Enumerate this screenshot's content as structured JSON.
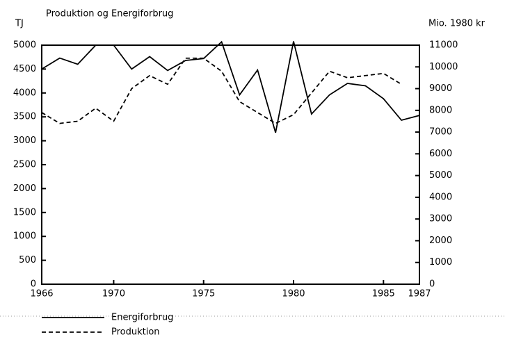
{
  "chart_data": {
    "type": "line",
    "title": "Produktion og Energiforbrug",
    "ylabel": "TJ",
    "y2label": "Mio. 1980 kr",
    "x": [
      1966,
      1967,
      1968,
      1969,
      1970,
      1971,
      1972,
      1973,
      1974,
      1975,
      1976,
      1977,
      1978,
      1979,
      1980,
      1981,
      1982,
      1983,
      1984,
      1985,
      1986,
      1987
    ],
    "xlim": [
      1966,
      1987
    ],
    "xticks": [
      1966,
      1970,
      1975,
      1980,
      1985,
      1987
    ],
    "ylim": [
      0,
      5000
    ],
    "yticks": [
      0,
      500,
      1000,
      1500,
      2000,
      2500,
      3000,
      3500,
      4000,
      4500,
      5000
    ],
    "y2lim": [
      0,
      11000
    ],
    "y2ticks": [
      0,
      1000,
      2000,
      3000,
      4000,
      5000,
      6000,
      7000,
      8000,
      9000,
      10000,
      11000
    ],
    "series": [
      {
        "name": "Energiforbrug",
        "color": "#000000",
        "dash": "solid",
        "values": [
          4500,
          4730,
          4600,
          5000,
          5000,
          4500,
          4760,
          4470,
          4680,
          4720,
          5070,
          3960,
          4480,
          3170,
          5080,
          3560,
          3960,
          4200,
          4150,
          3880,
          3430,
          3530
        ]
      },
      {
        "name": "Produktion",
        "color": "#000000",
        "dash": "dashed",
        "axis": "y2",
        "values": [
          7900,
          7400,
          7500,
          8100,
          7500,
          9000,
          9600,
          9200,
          10400,
          10400,
          9800,
          8400,
          7900,
          7400,
          7800,
          8800,
          9800,
          9500,
          9600,
          9700,
          9200,
          null
        ]
      }
    ]
  }
}
